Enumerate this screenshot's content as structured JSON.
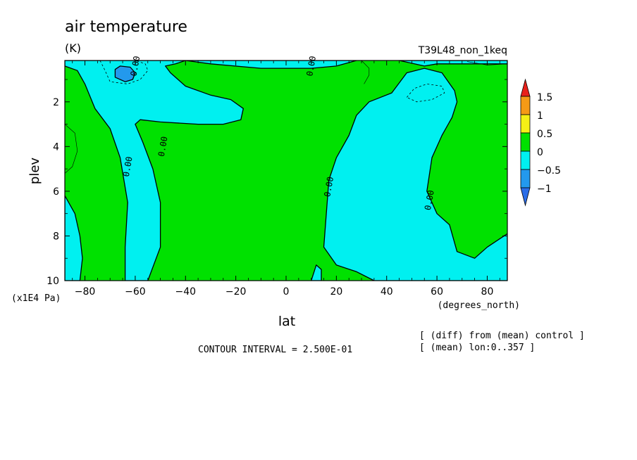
{
  "chart_data": {
    "type": "contour",
    "title": "air temperature",
    "units": "(K)",
    "run_label": "T39L48_non_1keq",
    "xlabel": "lat",
    "x_units": "(degrees_north)",
    "ylabel": "plev",
    "y_units": "(x1E4 Pa)",
    "xlim": [
      -88,
      88
    ],
    "ylim": [
      10,
      0.15
    ],
    "x_ticks": [
      -80,
      -60,
      -40,
      -20,
      0,
      20,
      40,
      60,
      80
    ],
    "x_tick_labels": [
      "−80",
      "−60",
      "−40",
      "−20",
      "0",
      "20",
      "40",
      "60",
      "80"
    ],
    "y_ticks": [
      2,
      4,
      6,
      8,
      10
    ],
    "y_tick_labels": [
      "2",
      "4",
      "6",
      "8",
      "10"
    ],
    "contour_interval_text": "CONTOUR INTERVAL = 2.500E-01",
    "notes": [
      "[ (diff) from (mean) control ]",
      "[ (mean) lon:0..357 ]"
    ],
    "contour_labels": [
      {
        "text": "0.00",
        "lat": -60,
        "plev": 0.4
      },
      {
        "text": "0.00",
        "lat": 10,
        "plev": 0.4
      },
      {
        "text": "0.00",
        "lat": -63,
        "plev": 4.9
      },
      {
        "text": "0.00",
        "lat": -49,
        "plev": 4.0
      },
      {
        "text": "0.00",
        "lat": 17,
        "plev": 5.8
      },
      {
        "text": "0.00",
        "lat": 57,
        "plev": 6.4
      }
    ],
    "colorbar": {
      "labels": [
        "1.5",
        "1",
        "0.5",
        "0",
        "−0.5",
        "−1"
      ],
      "colors": [
        "#e8211b",
        "#f59a16",
        "#f4f016",
        "#00e100",
        "#00f0f0",
        "#2399ed"
      ]
    },
    "regions": [
      {
        "value_range": "0 to 0.5",
        "color": "#00e100",
        "background": true
      },
      {
        "value_range": "-0.5 to 0",
        "color": "#00f0f0",
        "points": [
          [
            -88,
            0.15
          ],
          [
            -88,
            0.4
          ],
          [
            -83,
            0.6
          ],
          [
            -80,
            1.2
          ],
          [
            -76,
            2.3
          ],
          [
            -70,
            3.2
          ],
          [
            -66,
            4.5
          ],
          [
            -63,
            6.5
          ],
          [
            -64,
            8.5
          ],
          [
            -64,
            10
          ],
          [
            -55,
            10
          ],
          [
            -50,
            8.5
          ],
          [
            -50,
            6.5
          ],
          [
            -53,
            5.0
          ],
          [
            -57,
            3.8
          ],
          [
            -60,
            3.0
          ],
          [
            -58,
            2.8
          ],
          [
            -50,
            2.9
          ],
          [
            -35,
            3.0
          ],
          [
            -25,
            3.0
          ],
          [
            -18,
            2.8
          ],
          [
            -17,
            2.3
          ],
          [
            -22,
            1.9
          ],
          [
            -30,
            1.7
          ],
          [
            -40,
            1.3
          ],
          [
            -46,
            0.7
          ],
          [
            -48,
            0.4
          ],
          [
            -44,
            0.3
          ],
          [
            -40,
            0.15
          ]
        ]
      },
      {
        "value_range": "-0.5 to 0",
        "color": "#00f0f0",
        "points": [
          [
            -40,
            0.15
          ],
          [
            -30,
            0.3
          ],
          [
            -10,
            0.5
          ],
          [
            10,
            0.5
          ],
          [
            20,
            0.4
          ],
          [
            28,
            0.15
          ]
        ]
      },
      {
        "value_range": "-0.5 to 0",
        "color": "#00f0f0",
        "points": [
          [
            45,
            0.15
          ],
          [
            55,
            0.4
          ],
          [
            60,
            0.3
          ],
          [
            75,
            0.3
          ],
          [
            88,
            0.3
          ],
          [
            88,
            0.15
          ]
        ]
      },
      {
        "value_range": "-0.5 to 0",
        "color": "#00f0f0",
        "points": [
          [
            48,
            0.7
          ],
          [
            42,
            1.6
          ],
          [
            33,
            2.0
          ],
          [
            28,
            2.6
          ],
          [
            25,
            3.5
          ],
          [
            20,
            4.5
          ],
          [
            17,
            5.5
          ],
          [
            16,
            7.0
          ],
          [
            15,
            8.5
          ],
          [
            20,
            9.3
          ],
          [
            28,
            9.6
          ],
          [
            35,
            10
          ],
          [
            88,
            10
          ],
          [
            88,
            7.9
          ],
          [
            80,
            8.5
          ],
          [
            75,
            9.0
          ],
          [
            68,
            8.7
          ],
          [
            65,
            7.5
          ],
          [
            60,
            7.0
          ],
          [
            56,
            6.0
          ],
          [
            58,
            4.5
          ],
          [
            62,
            3.5
          ],
          [
            66,
            2.7
          ],
          [
            68,
            2.0
          ],
          [
            67,
            1.5
          ],
          [
            62,
            0.7
          ],
          [
            55,
            0.5
          ]
        ]
      },
      {
        "value_range": "-0.5 to 0",
        "color": "#00f0f0",
        "points": [
          [
            -88,
            6.2
          ],
          [
            -84,
            7.0
          ],
          [
            -82,
            8.0
          ],
          [
            -81,
            9.0
          ],
          [
            -82,
            10
          ],
          [
            -88,
            10
          ]
        ]
      },
      {
        "value_range": "-0.5 to 0",
        "color": "#00f0f0",
        "points": [
          [
            10,
            10
          ],
          [
            12,
            9.3
          ],
          [
            14,
            9.5
          ],
          [
            14,
            10
          ]
        ]
      },
      {
        "value_range": "-1 to -0.5",
        "color": "#2399ed",
        "points": [
          [
            -68,
            0.55
          ],
          [
            -66,
            0.4
          ],
          [
            -62,
            0.45
          ],
          [
            -60,
            0.7
          ],
          [
            -61,
            1.0
          ],
          [
            -64,
            1.1
          ],
          [
            -68,
            0.9
          ]
        ]
      }
    ],
    "dashed_contours": [
      {
        "points": [
          [
            -74,
            0.15
          ],
          [
            -72,
            0.6
          ],
          [
            -70,
            1.1
          ],
          [
            -63,
            1.2
          ],
          [
            -58,
            1.0
          ],
          [
            -55,
            0.6
          ],
          [
            -56,
            0.3
          ],
          [
            -60,
            0.15
          ]
        ]
      },
      {
        "points": [
          [
            48,
            1.8
          ],
          [
            51,
            1.4
          ],
          [
            56,
            1.2
          ],
          [
            62,
            1.3
          ],
          [
            63,
            1.6
          ],
          [
            58,
            1.9
          ],
          [
            52,
            2.0
          ]
        ]
      }
    ],
    "thin_contours": [
      {
        "points": [
          [
            -88,
            3.0
          ],
          [
            -84,
            3.4
          ],
          [
            -83,
            4.2
          ],
          [
            -85,
            4.9
          ],
          [
            -88,
            5.2
          ]
        ]
      },
      {
        "points": [
          [
            30,
            0.15
          ],
          [
            33,
            0.5
          ],
          [
            33,
            0.8
          ],
          [
            31,
            1.2
          ]
        ]
      },
      {
        "points": [
          [
            72,
            0.2
          ],
          [
            80,
            0.35
          ],
          [
            88,
            0.3
          ]
        ]
      }
    ]
  }
}
